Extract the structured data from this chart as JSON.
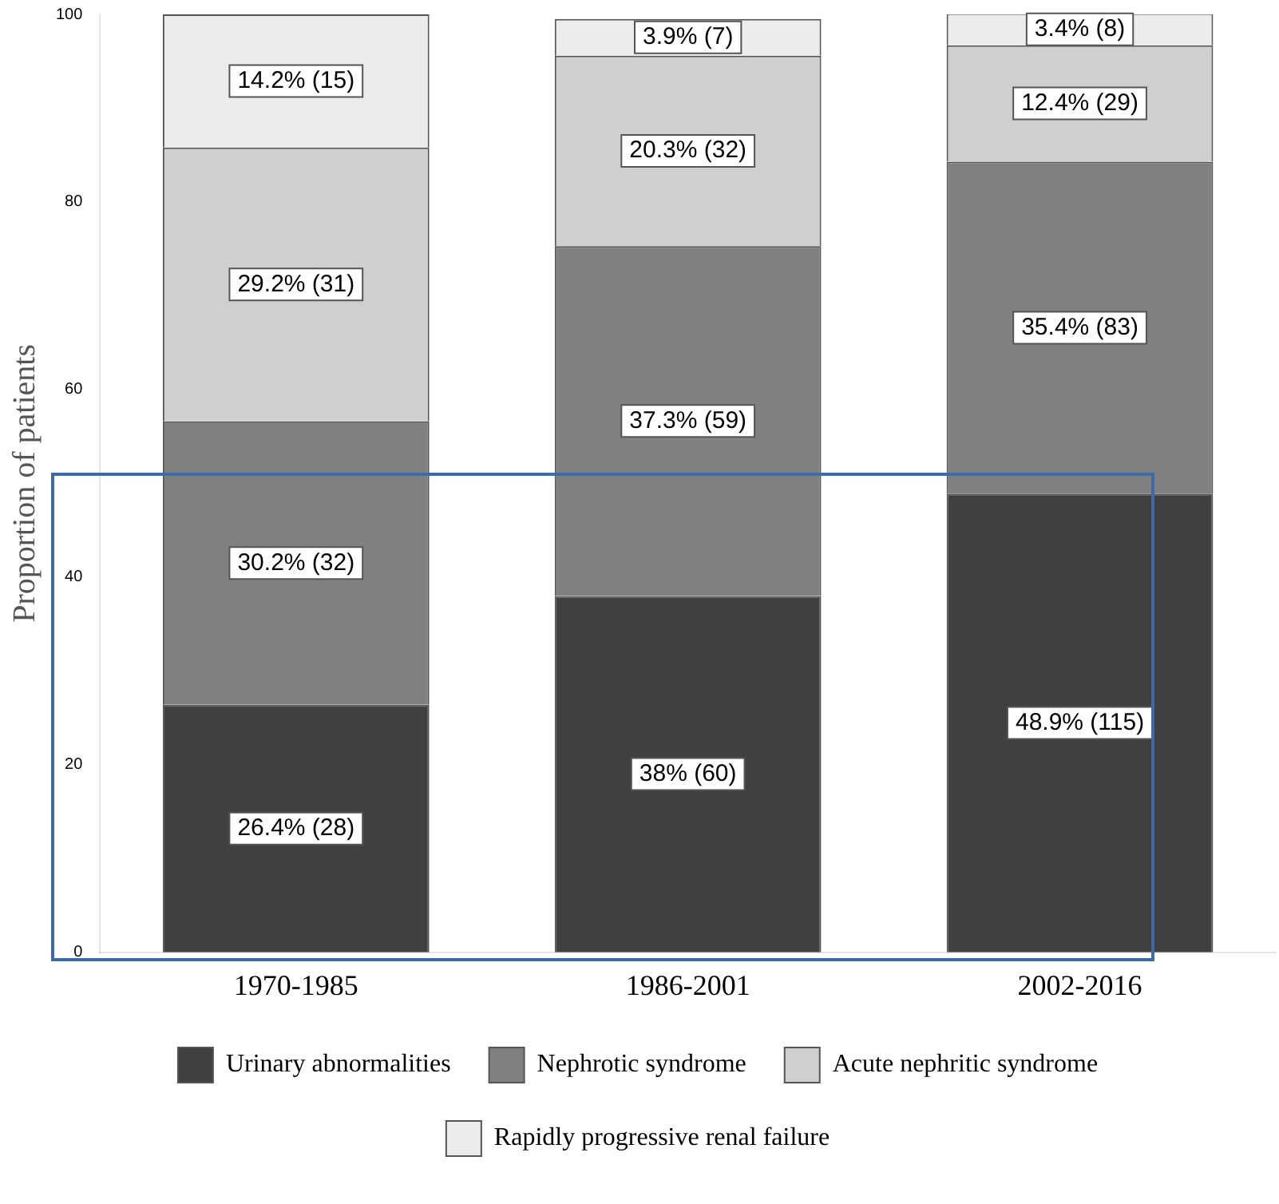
{
  "chart_data": {
    "type": "bar",
    "stacked": true,
    "ylabel": "Proportion of patients",
    "categories": [
      "1970-1985",
      "1986-2001",
      "2002-2016"
    ],
    "ylim": [
      0,
      100
    ],
    "yticks": [
      0,
      20,
      40,
      60,
      80,
      100
    ],
    "grid": false,
    "legend": "bottom",
    "series": [
      {
        "name": "Urinary abnormalities",
        "color": "#404040",
        "values": [
          26.4,
          38,
          48.9
        ],
        "value_labels": [
          "26.4% (28)",
          "38% (60)",
          "48.9% (115)"
        ]
      },
      {
        "name": "Nephrotic syndrome",
        "color": "#808080",
        "values": [
          30.2,
          37.3,
          35.4
        ],
        "value_labels": [
          "30.2% (32)",
          "37.3% (59)",
          "35.4% (83)"
        ]
      },
      {
        "name": "Acute nephritic syndrome",
        "color": "#cfcfcf",
        "values": [
          29.2,
          20.3,
          12.4
        ],
        "value_labels": [
          "29.2% (31)",
          "20.3% (32)",
          "12.4% (29)"
        ]
      },
      {
        "name": "Rapidly progressive renal failure",
        "color": "#ececec",
        "values": [
          14.2,
          3.9,
          3.4
        ],
        "value_labels": [
          "14.2% (15)",
          "3.9% (7)",
          "3.4% (8)"
        ]
      }
    ]
  }
}
